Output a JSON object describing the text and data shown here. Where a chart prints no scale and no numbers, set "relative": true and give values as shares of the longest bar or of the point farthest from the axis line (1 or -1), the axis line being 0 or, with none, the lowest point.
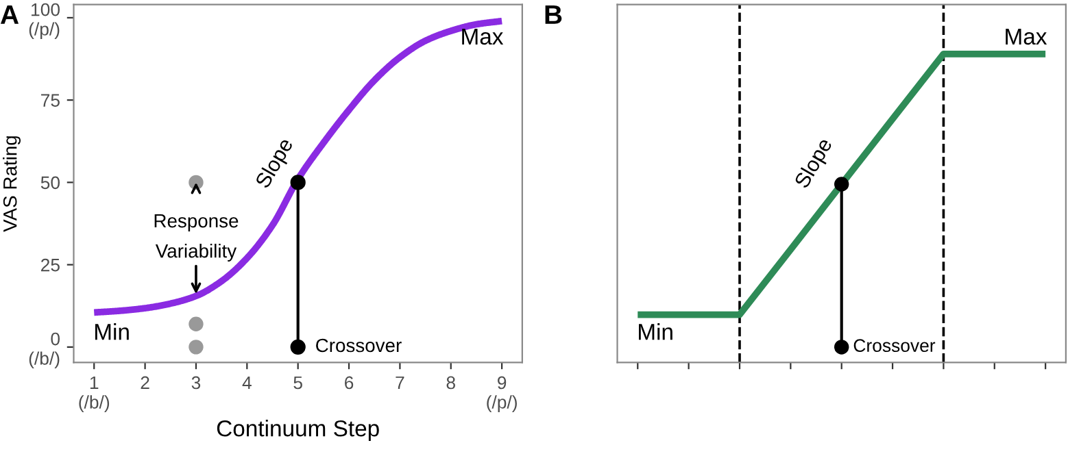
{
  "chart_data": [
    {
      "type": "line",
      "title": "A",
      "xlabel": "Continuum Step",
      "ylabel": "VAS Rating",
      "xlim": [
        0.6,
        9.4
      ],
      "xticks": [
        {
          "value": 1,
          "label": "1\n(/b/)"
        },
        2,
        3,
        4,
        5,
        6,
        7,
        8,
        {
          "value": 9,
          "label": "9\n(/p/)"
        }
      ],
      "ylim": [
        -4.7,
        104
      ],
      "yticks": [
        {
          "value": 0,
          "label": "0\n(/b/)"
        },
        25,
        50,
        75,
        {
          "value": 100,
          "label": "100\n(/p/)"
        }
      ],
      "grid": false,
      "legend": false,
      "series": [
        {
          "type": "line",
          "color": "#8a2be2",
          "x": [
            1,
            1.5,
            2,
            2.5,
            3,
            3.5,
            4,
            4.5,
            5,
            5.5,
            6,
            6.5,
            7,
            7.5,
            8,
            8.5,
            9
          ],
          "values": [
            10.5,
            11,
            11.8,
            13.2,
            15.5,
            20,
            27,
            37,
            51,
            62,
            72,
            81,
            88,
            93,
            96,
            98,
            99
          ]
        },
        {
          "type": "scatter",
          "color": "#999999",
          "x": [
            3,
            3,
            3
          ],
          "values": [
            50,
            7,
            0
          ],
          "marker": "circle"
        },
        {
          "type": "line",
          "color": "#000000",
          "x": [
            5,
            5
          ],
          "values": [
            0,
            50
          ],
          "marker": "circle"
        }
      ],
      "annotations": [
        "Min",
        "Max",
        "Slope",
        {
          "text": "Response\nVariability",
          "x": 3,
          "y": 50
        },
        {
          "text": "Crossover",
          "x": 5,
          "y": 0
        }
      ]
    },
    {
      "type": "line",
      "title": "B",
      "relative": true,
      "categories": [
        null,
        null,
        null,
        null,
        null,
        null,
        null,
        null,
        null
      ],
      "grid": false,
      "legend": false,
      "series": [
        {
          "type": "line",
          "color": "#2e8b57",
          "values": [
            0.155,
            0.155,
            0.155,
            0.366,
            0.578,
            0.789,
            1,
            1,
            1
          ]
        }
      ],
      "annotations": [
        "Min",
        "Max",
        "Slope",
        "Crossover"
      ]
    }
  ]
}
